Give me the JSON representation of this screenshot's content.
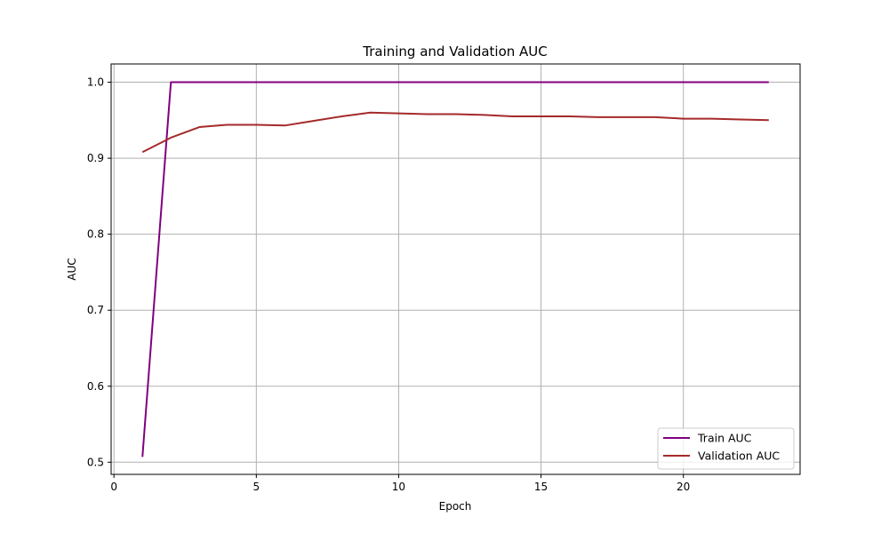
{
  "chart_data": {
    "type": "line",
    "title": "Training and Validation AUC",
    "xlabel": "Epoch",
    "ylabel": "AUC",
    "xlim": [
      -0.1,
      24.1
    ],
    "ylim": [
      0.484,
      1.024
    ],
    "xticks": [
      0,
      5,
      10,
      15,
      20
    ],
    "yticks": [
      0.5,
      0.6,
      0.7,
      0.8,
      0.9,
      1.0
    ],
    "xtick_labels": [
      "0",
      "5",
      "10",
      "15",
      "20"
    ],
    "ytick_labels": [
      "0.5",
      "0.6",
      "0.7",
      "0.8",
      "0.9",
      "1.0"
    ],
    "grid": true,
    "legend_position": "bottom-right",
    "x": [
      1,
      2,
      3,
      4,
      5,
      6,
      7,
      8,
      9,
      10,
      11,
      12,
      13,
      14,
      15,
      16,
      17,
      18,
      19,
      20,
      21,
      22,
      23
    ],
    "series": [
      {
        "name": "Train AUC",
        "color": "#800080",
        "values": [
          0.507,
          1.0,
          1.0,
          1.0,
          1.0,
          1.0,
          1.0,
          1.0,
          1.0,
          1.0,
          1.0,
          1.0,
          1.0,
          1.0,
          1.0,
          1.0,
          1.0,
          1.0,
          1.0,
          1.0,
          1.0,
          1.0,
          1.0
        ]
      },
      {
        "name": "Validation AUC",
        "color": "#a52a2a",
        "values": [
          0.908,
          0.927,
          0.941,
          0.944,
          0.944,
          0.943,
          0.949,
          0.955,
          0.96,
          0.959,
          0.958,
          0.958,
          0.957,
          0.955,
          0.955,
          0.955,
          0.954,
          0.954,
          0.954,
          0.952,
          0.952,
          0.951,
          0.95
        ]
      }
    ]
  }
}
